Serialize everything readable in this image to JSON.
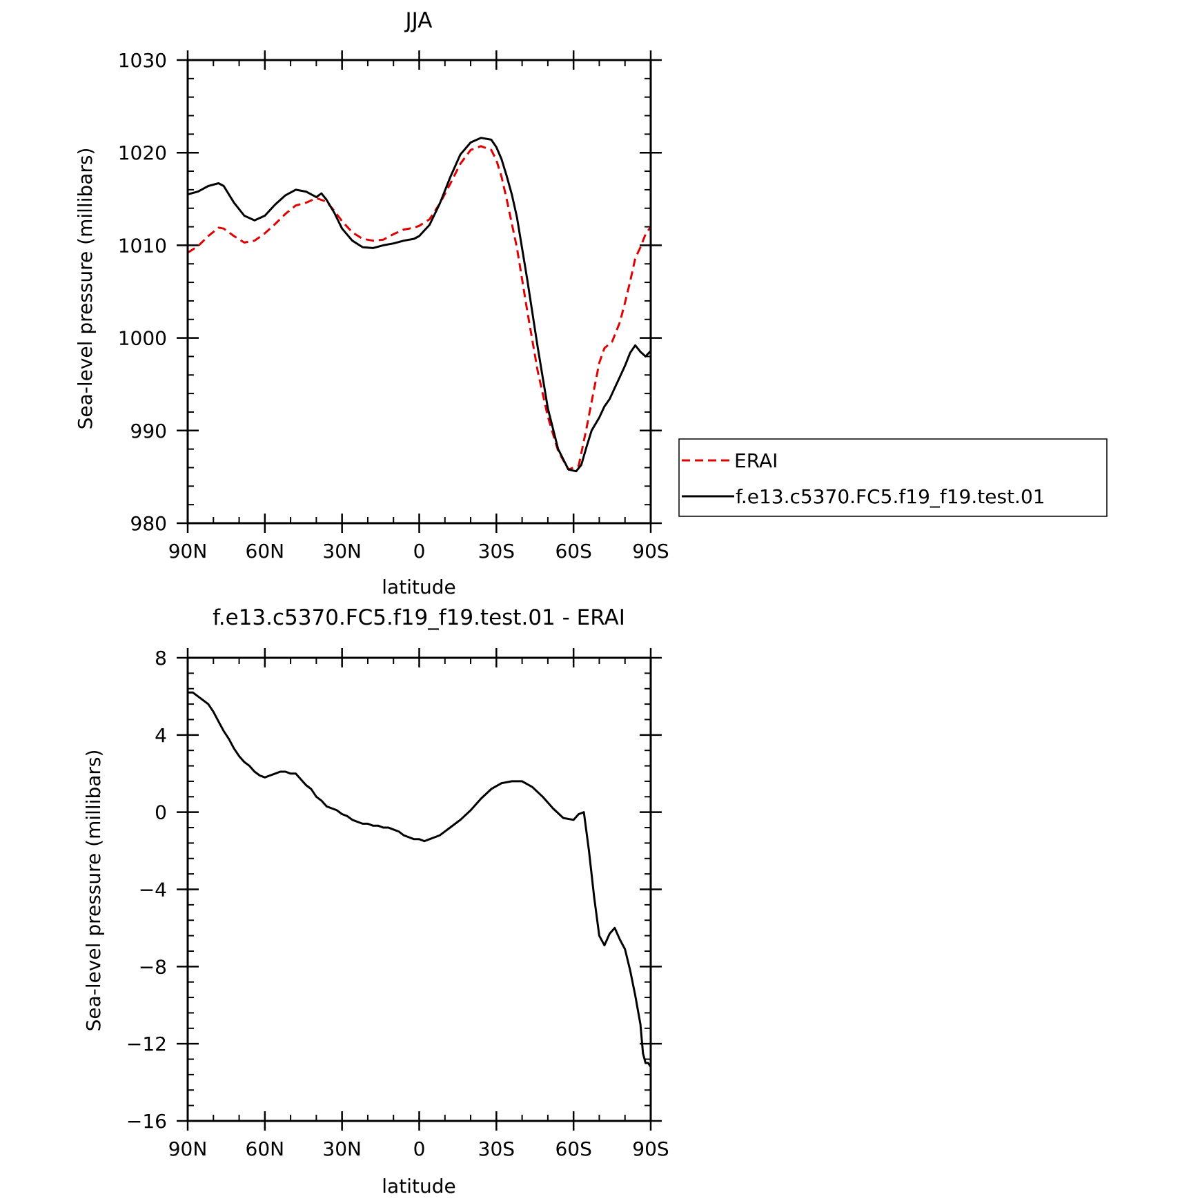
{
  "chart_data": [
    {
      "type": "line",
      "title": "JJA",
      "xlabel": "latitude",
      "ylabel": "Sea-level pressure (millibars)",
      "xlim": [
        90,
        -90
      ],
      "ylim": [
        980,
        1030
      ],
      "x_ticks": [
        {
          "v": 90,
          "label": "90N"
        },
        {
          "v": 60,
          "label": "60N"
        },
        {
          "v": 30,
          "label": "30N"
        },
        {
          "v": 0,
          "label": "0"
        },
        {
          "v": -30,
          "label": "30S"
        },
        {
          "v": -60,
          "label": "60S"
        },
        {
          "v": -90,
          "label": "90S"
        }
      ],
      "y_ticks": [
        {
          "v": 980,
          "label": "980"
        },
        {
          "v": 990,
          "label": "990"
        },
        {
          "v": 1000,
          "label": "1000"
        },
        {
          "v": 1010,
          "label": "1010"
        },
        {
          "v": 1020,
          "label": "1020"
        },
        {
          "v": 1030,
          "label": "1030"
        }
      ],
      "grid": false,
      "legend_position": "right",
      "series": [
        {
          "name": "ERAI",
          "color": "#e00000",
          "dash": true,
          "x": [
            90,
            86,
            82,
            78,
            76,
            72,
            68,
            64,
            60,
            56,
            52,
            48,
            44,
            40,
            36,
            33,
            30,
            26,
            22,
            18,
            14,
            10,
            6,
            2,
            0,
            -4,
            -8,
            -12,
            -16,
            -20,
            -24,
            -28,
            -30,
            -32,
            -34,
            -38,
            -42,
            -46,
            -50,
            -54,
            -58,
            -62,
            -65,
            -68,
            -70,
            -72,
            -75,
            -78,
            -80,
            -82,
            -84,
            -86,
            -88,
            -90
          ],
          "y": [
            1009.2,
            1009.9,
            1011.0,
            1011.9,
            1011.8,
            1011.0,
            1010.3,
            1010.5,
            1011.3,
            1012.3,
            1013.4,
            1014.3,
            1014.6,
            1015.1,
            1014.7,
            1013.7,
            1012.6,
            1011.4,
            1010.7,
            1010.5,
            1010.6,
            1011.2,
            1011.7,
            1011.9,
            1012.1,
            1012.8,
            1014.5,
            1016.6,
            1018.8,
            1020.3,
            1020.7,
            1020.3,
            1019.2,
            1017.4,
            1015.0,
            1009.7,
            1002.9,
            996.5,
            991.5,
            987.8,
            985.8,
            986.2,
            990.2,
            994.5,
            997.3,
            998.9,
            999.6,
            1001.7,
            1003.8,
            1006.1,
            1008.6,
            1009.8,
            1011.2,
            1012.0
          ]
        },
        {
          "name": "f.e13.c5370.FC5.f19_f19.test.01",
          "color": "#000000",
          "dash": false,
          "x": [
            90,
            86,
            82,
            78,
            76,
            72,
            68,
            64,
            60,
            56,
            52,
            48,
            44,
            40,
            38,
            36,
            33,
            30,
            26,
            22,
            18,
            14,
            10,
            6,
            2,
            0,
            -4,
            -8,
            -12,
            -16,
            -20,
            -24,
            -28,
            -30,
            -32,
            -34,
            -36,
            -38,
            -42,
            -46,
            -50,
            -54,
            -58,
            -61,
            -63,
            -65,
            -67,
            -70,
            -72,
            -74,
            -76,
            -78,
            -80,
            -82,
            -84,
            -86,
            -88,
            -90
          ],
          "y": [
            1015.5,
            1015.8,
            1016.4,
            1016.7,
            1016.4,
            1014.6,
            1013.2,
            1012.7,
            1013.2,
            1014.4,
            1015.4,
            1016.0,
            1015.8,
            1015.2,
            1015.6,
            1014.9,
            1013.5,
            1011.8,
            1010.5,
            1009.8,
            1009.7,
            1010.0,
            1010.2,
            1010.5,
            1010.7,
            1011.0,
            1012.2,
            1014.5,
            1017.3,
            1019.8,
            1021.1,
            1021.6,
            1021.4,
            1020.6,
            1019.3,
            1017.5,
            1015.5,
            1013.0,
            1006.3,
            999.1,
            992.4,
            988.0,
            985.8,
            985.6,
            986.3,
            988.2,
            990.0,
            991.4,
            992.6,
            993.4,
            994.6,
            995.8,
            997.0,
            998.4,
            999.2,
            998.5,
            998.0,
            998.6
          ]
        }
      ]
    },
    {
      "type": "line",
      "title": "f.e13.c5370.FC5.f19_f19.test.01 - ERAI",
      "xlabel": "latitude",
      "ylabel": "Sea-level pressure (millibars)",
      "xlim": [
        90,
        -90
      ],
      "ylim": [
        -16,
        8
      ],
      "x_ticks": [
        {
          "v": 90,
          "label": "90N"
        },
        {
          "v": 60,
          "label": "60N"
        },
        {
          "v": 30,
          "label": "30N"
        },
        {
          "v": 0,
          "label": "0"
        },
        {
          "v": -30,
          "label": "30S"
        },
        {
          "v": -60,
          "label": "60S"
        },
        {
          "v": -90,
          "label": "90S"
        }
      ],
      "y_ticks": [
        {
          "v": -16,
          "label": "-16"
        },
        {
          "v": -12,
          "label": "-12"
        },
        {
          "v": -8,
          "label": "-8"
        },
        {
          "v": -4,
          "label": "-4"
        },
        {
          "v": 0,
          "label": "0"
        },
        {
          "v": 4,
          "label": "4"
        },
        {
          "v": 8,
          "label": "8"
        }
      ],
      "grid": false,
      "series": [
        {
          "color": "#000000",
          "dash": false,
          "x": [
            90,
            88,
            85,
            82,
            80,
            78,
            76,
            74,
            72,
            70,
            68,
            66,
            64,
            62,
            60,
            58,
            56,
            54,
            52,
            50,
            48,
            46,
            44,
            42,
            40,
            38,
            36,
            34,
            32,
            30,
            28,
            26,
            24,
            22,
            20,
            18,
            16,
            14,
            12,
            10,
            8,
            6,
            4,
            2,
            0,
            -2,
            -4,
            -6,
            -8,
            -10,
            -12,
            -16,
            -20,
            -24,
            -28,
            -32,
            -36,
            -40,
            -44,
            -48,
            -52,
            -56,
            -60,
            -62,
            -64,
            -66,
            -68,
            -70,
            -72,
            -74,
            -76,
            -78,
            -80,
            -82,
            -84,
            -86,
            -87,
            -88,
            -89,
            -90
          ],
          "y": [
            6.2,
            6.2,
            5.9,
            5.6,
            5.2,
            4.7,
            4.2,
            3.8,
            3.3,
            2.9,
            2.6,
            2.4,
            2.1,
            1.9,
            1.8,
            1.9,
            2.0,
            2.1,
            2.1,
            2.0,
            2.0,
            1.7,
            1.4,
            1.2,
            0.8,
            0.6,
            0.3,
            0.2,
            0.1,
            -0.1,
            -0.2,
            -0.4,
            -0.5,
            -0.6,
            -0.6,
            -0.7,
            -0.7,
            -0.8,
            -0.8,
            -0.9,
            -1.0,
            -1.2,
            -1.3,
            -1.4,
            -1.4,
            -1.5,
            -1.4,
            -1.3,
            -1.2,
            -1.0,
            -0.8,
            -0.4,
            0.1,
            0.7,
            1.2,
            1.5,
            1.6,
            1.6,
            1.3,
            0.8,
            0.2,
            -0.3,
            -0.4,
            -0.1,
            0.0,
            -2.0,
            -4.4,
            -6.4,
            -6.9,
            -6.3,
            -6.0,
            -6.6,
            -7.1,
            -8.2,
            -9.5,
            -11.0,
            -12.5,
            -13.0,
            -13.0,
            -13.2
          ]
        }
      ]
    }
  ]
}
